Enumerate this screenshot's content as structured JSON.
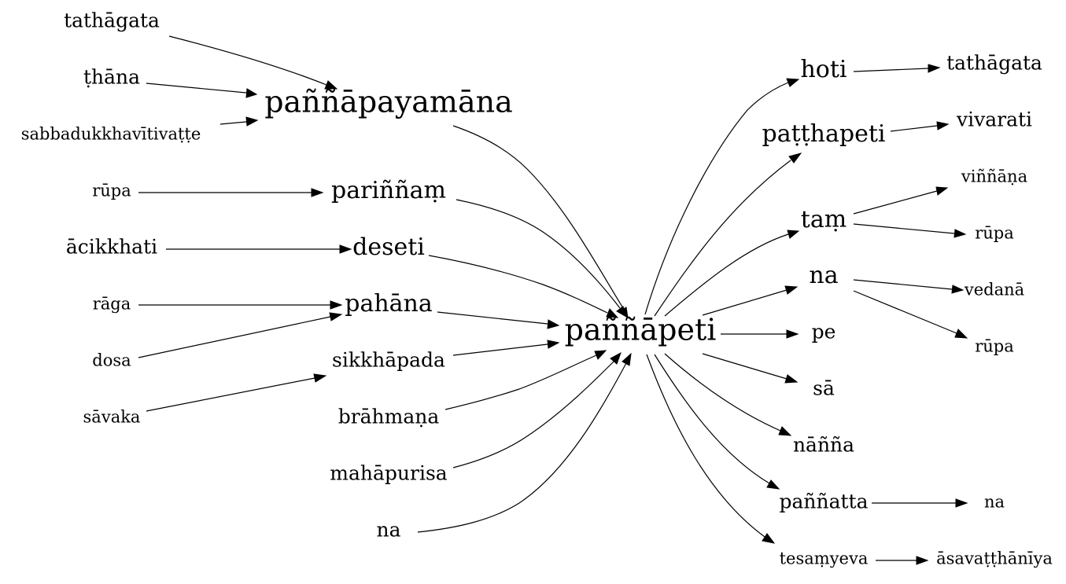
{
  "nodes": {
    "center": {
      "label": "paññāpeti"
    },
    "tathagata_in": {
      "label": "tathāgata"
    },
    "thana": {
      "label": "ṭhāna"
    },
    "sabbadukkha": {
      "label": "sabbadukkhavītivaṭṭe"
    },
    "pannapayamana": {
      "label": "paññāpayamāna"
    },
    "rupa_in": {
      "label": "rūpa"
    },
    "parinnam": {
      "label": "pariññaṃ"
    },
    "acikkhati": {
      "label": "ācikkhati"
    },
    "deseti": {
      "label": "deseti"
    },
    "raga": {
      "label": "rāga"
    },
    "dosa": {
      "label": "dosa"
    },
    "pahana": {
      "label": "pahāna"
    },
    "savaka": {
      "label": "sāvaka"
    },
    "sikkhapada": {
      "label": "sikkhāpada"
    },
    "brahmana": {
      "label": "brāhmaṇa"
    },
    "mahapurisa": {
      "label": "mahāpurisa"
    },
    "na_in": {
      "label": "na"
    },
    "hoti": {
      "label": "hoti"
    },
    "tathagata_out": {
      "label": "tathāgata"
    },
    "patthapeti": {
      "label": "paṭṭhapeti"
    },
    "vivarati": {
      "label": "vivarati"
    },
    "tam": {
      "label": "taṃ"
    },
    "vinnana": {
      "label": "viññāṇa"
    },
    "rupa_out1": {
      "label": "rūpa"
    },
    "na_mid": {
      "label": "na"
    },
    "vedana": {
      "label": "vedanā"
    },
    "rupa_out2": {
      "label": "rūpa"
    },
    "pe": {
      "label": "pe"
    },
    "sa": {
      "label": "sā"
    },
    "nanna": {
      "label": "nāñña"
    },
    "pannatta": {
      "label": "paññatta"
    },
    "na_out": {
      "label": "na"
    },
    "tesamyeva": {
      "label": "tesaṃyeva"
    },
    "asavatthaniya": {
      "label": "āsavaṭṭhānīya"
    }
  },
  "edges": [
    {
      "from": "tathagata_in",
      "to": "pannapayamana"
    },
    {
      "from": "thana",
      "to": "pannapayamana"
    },
    {
      "from": "sabbadukkha",
      "to": "pannapayamana"
    },
    {
      "from": "pannapayamana",
      "to": "center"
    },
    {
      "from": "rupa_in",
      "to": "parinnam"
    },
    {
      "from": "parinnam",
      "to": "center"
    },
    {
      "from": "acikkhati",
      "to": "deseti"
    },
    {
      "from": "deseti",
      "to": "center"
    },
    {
      "from": "raga",
      "to": "pahana"
    },
    {
      "from": "dosa",
      "to": "pahana"
    },
    {
      "from": "pahana",
      "to": "center"
    },
    {
      "from": "savaka",
      "to": "sikkhapada"
    },
    {
      "from": "sikkhapada",
      "to": "center"
    },
    {
      "from": "brahmana",
      "to": "center"
    },
    {
      "from": "mahapurisa",
      "to": "center"
    },
    {
      "from": "na_in",
      "to": "center"
    },
    {
      "from": "center",
      "to": "hoti"
    },
    {
      "from": "hoti",
      "to": "tathagata_out"
    },
    {
      "from": "center",
      "to": "patthapeti"
    },
    {
      "from": "patthapeti",
      "to": "vivarati"
    },
    {
      "from": "center",
      "to": "tam"
    },
    {
      "from": "tam",
      "to": "vinnana"
    },
    {
      "from": "tam",
      "to": "rupa_out1"
    },
    {
      "from": "center",
      "to": "na_mid"
    },
    {
      "from": "na_mid",
      "to": "vedana"
    },
    {
      "from": "na_mid",
      "to": "rupa_out2"
    },
    {
      "from": "center",
      "to": "pe"
    },
    {
      "from": "center",
      "to": "sa"
    },
    {
      "from": "center",
      "to": "nanna"
    },
    {
      "from": "center",
      "to": "pannatta"
    },
    {
      "from": "pannatta",
      "to": "na_out"
    },
    {
      "from": "center",
      "to": "tesamyeva"
    },
    {
      "from": "tesamyeva",
      "to": "asavatthaniya"
    }
  ]
}
